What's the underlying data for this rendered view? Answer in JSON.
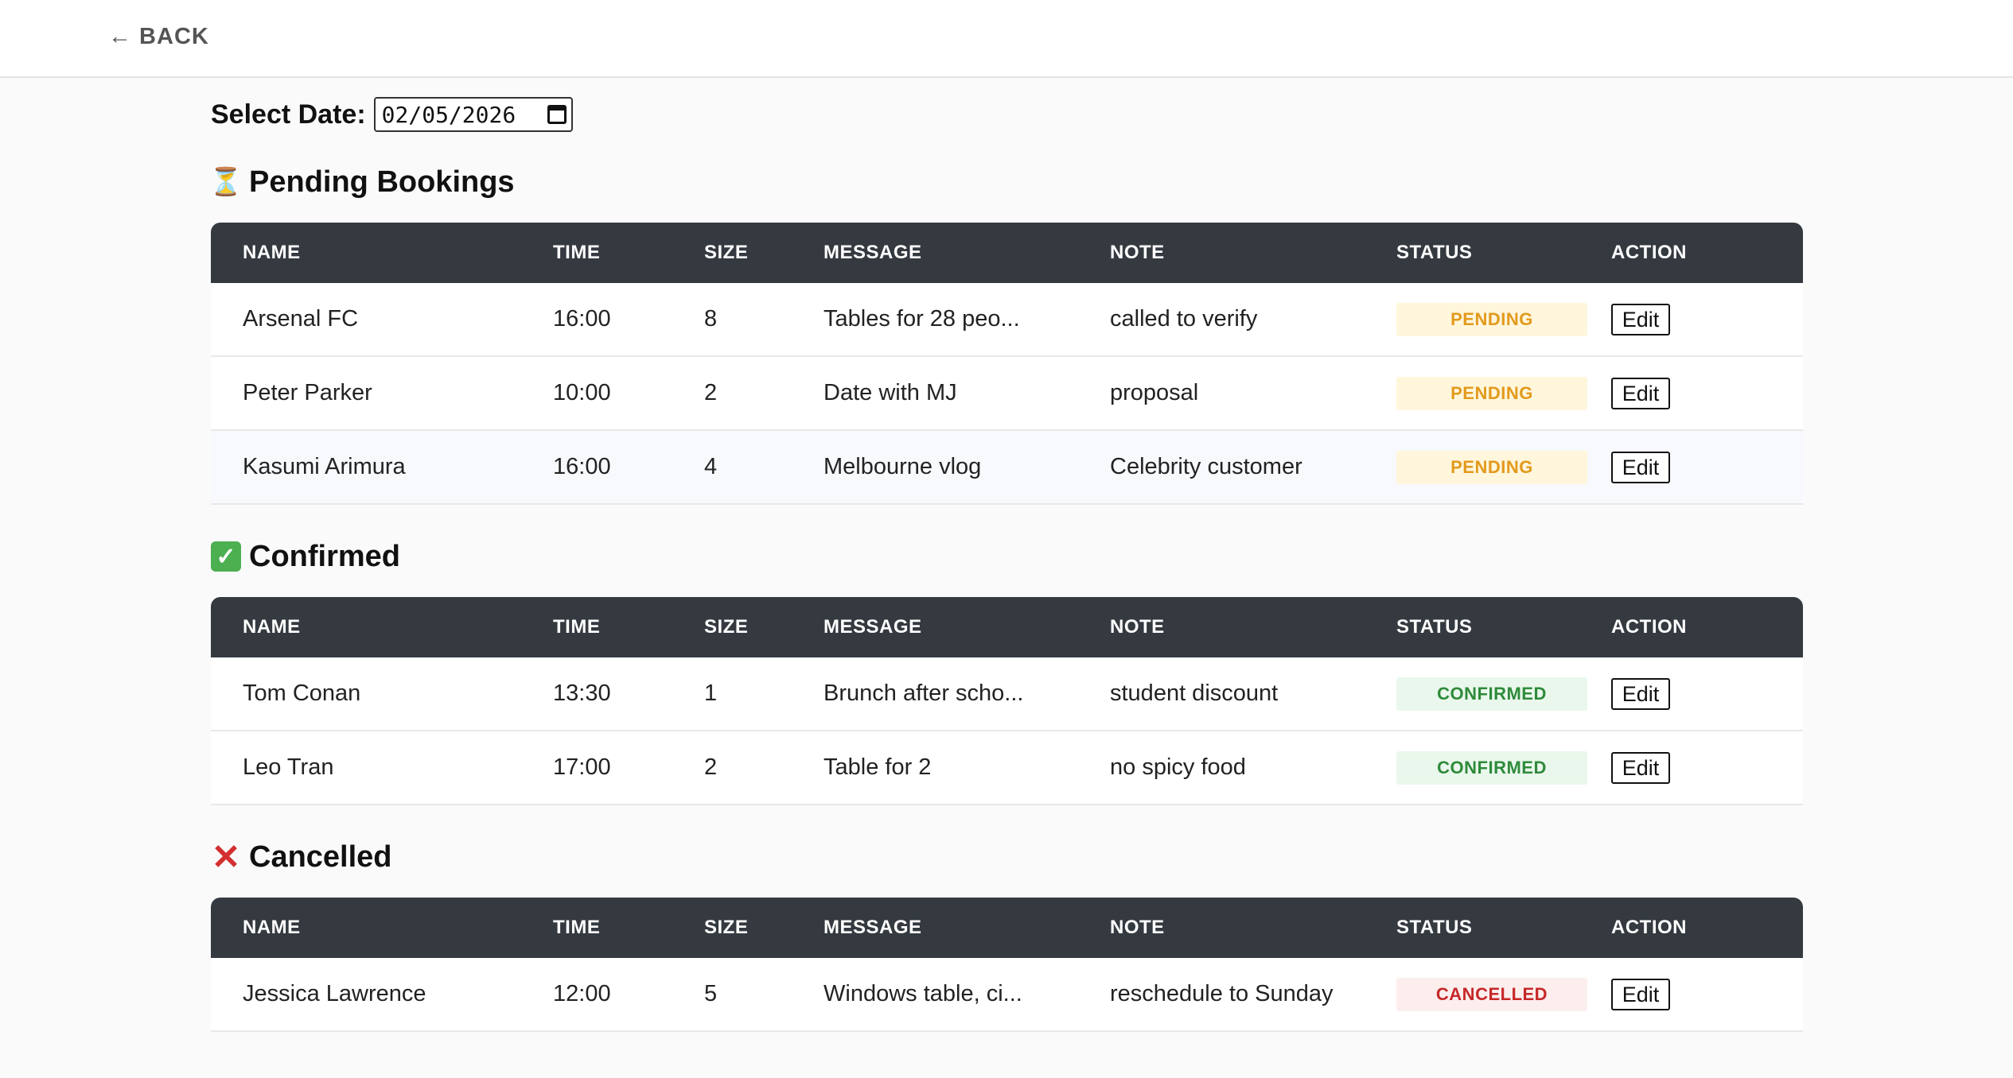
{
  "nav": {
    "back_label": "← BACK"
  },
  "date_picker": {
    "label": "Select Date:",
    "value": "02/05/2026"
  },
  "colors": {
    "header_bg": "#343a40",
    "pending_bg": "#fff6dc",
    "pending_fg": "#e39a1c",
    "confirmed_bg": "#eaf7ec",
    "confirmed_fg": "#2e8b3a",
    "cancelled_bg": "#fdeeee",
    "cancelled_fg": "#c62828"
  },
  "columns": [
    "NAME",
    "TIME",
    "SIZE",
    "MESSAGE",
    "NOTE",
    "STATUS",
    "ACTION"
  ],
  "sections": {
    "pending": {
      "icon": "hourglass-icon",
      "title": "Pending Bookings",
      "rows": [
        {
          "name": "Arsenal FC",
          "time": "16:00",
          "size": "8",
          "message": "Tables for 28 peo...",
          "note": "called to verify",
          "status": "PENDING",
          "action": "Edit"
        },
        {
          "name": "Peter Parker",
          "time": "10:00",
          "size": "2",
          "message": "Date with MJ",
          "note": "proposal",
          "status": "PENDING",
          "action": "Edit"
        },
        {
          "name": "Kasumi Arimura",
          "time": "16:00",
          "size": "4",
          "message": "Melbourne vlog",
          "note": "Celebrity customer",
          "status": "PENDING",
          "action": "Edit"
        }
      ]
    },
    "confirmed": {
      "icon": "check-mark-icon",
      "title": "Confirmed",
      "rows": [
        {
          "name": "Tom Conan",
          "time": "13:30",
          "size": "1",
          "message": "Brunch after scho...",
          "note": "student discount",
          "status": "CONFIRMED",
          "action": "Edit"
        },
        {
          "name": "Leo Tran",
          "time": "17:00",
          "size": "2",
          "message": "Table for 2",
          "note": "no spicy food",
          "status": "CONFIRMED",
          "action": "Edit"
        }
      ]
    },
    "cancelled": {
      "icon": "cross-mark-icon",
      "title": "Cancelled",
      "rows": [
        {
          "name": "Jessica Lawrence",
          "time": "12:00",
          "size": "5",
          "message": "Windows table, ci...",
          "note": "reschedule to Sunday",
          "status": "CANCELLED",
          "action": "Edit"
        }
      ]
    }
  }
}
